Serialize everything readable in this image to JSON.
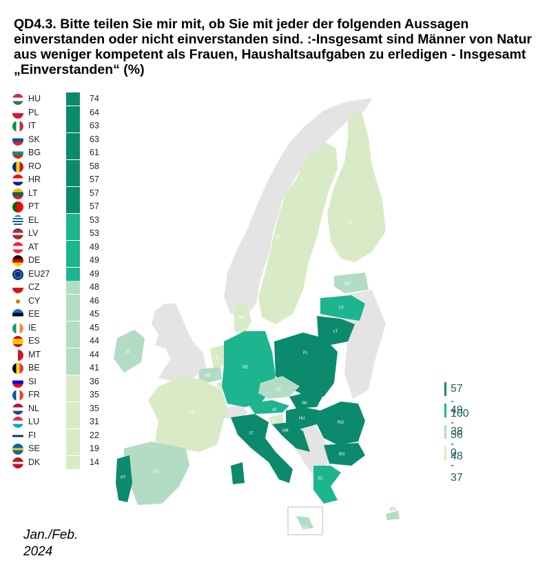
{
  "title": "QD4.3. Bitte teilen Sie mir mit, ob Sie mit jeder der folgenden Aussagen einverstanden oder nicht einverstanden sind. :-Insgesamt sind Männer von Natur aus weniger kompetent als Frauen, Haushaltsaufgaben zu erledigen - Insgesamt „Einverstanden“ (%)",
  "date": "Jan./Feb. 2024",
  "colors": {
    "c1": "#0c8a6e",
    "c2": "#1db490",
    "c3": "#b3dcc4",
    "c4": "#d9ebc6",
    "nodata": "#e4e4e4"
  },
  "countries": [
    {
      "code": "HU",
      "value": "74",
      "class": "c1"
    },
    {
      "code": "PL",
      "value": "64",
      "class": "c1"
    },
    {
      "code": "IT",
      "value": "63",
      "class": "c1"
    },
    {
      "code": "SK",
      "value": "63",
      "class": "c1"
    },
    {
      "code": "BG",
      "value": "61",
      "class": "c1"
    },
    {
      "code": "RO",
      "value": "58",
      "class": "c1"
    },
    {
      "code": "HR",
      "value": "57",
      "class": "c1"
    },
    {
      "code": "LT",
      "value": "57",
      "class": "c1"
    },
    {
      "code": "PT",
      "value": "57",
      "class": "c1"
    },
    {
      "code": "EL",
      "value": "53",
      "class": "c2"
    },
    {
      "code": "LV",
      "value": "53",
      "class": "c2"
    },
    {
      "code": "AT",
      "value": "49",
      "class": "c2"
    },
    {
      "code": "DE",
      "value": "49",
      "class": "c2"
    },
    {
      "code": "EU27",
      "value": "49",
      "class": "c2"
    },
    {
      "code": "CZ",
      "value": "48",
      "class": "c3"
    },
    {
      "code": "CY",
      "value": "46",
      "class": "c3"
    },
    {
      "code": "EE",
      "value": "45",
      "class": "c3"
    },
    {
      "code": "IE",
      "value": "45",
      "class": "c3"
    },
    {
      "code": "ES",
      "value": "44",
      "class": "c3"
    },
    {
      "code": "MT",
      "value": "44",
      "class": "c3"
    },
    {
      "code": "BE",
      "value": "41",
      "class": "c3"
    },
    {
      "code": "SI",
      "value": "36",
      "class": "c4"
    },
    {
      "code": "FR",
      "value": "35",
      "class": "c4"
    },
    {
      "code": "NL",
      "value": "35",
      "class": "c4"
    },
    {
      "code": "LU",
      "value": "31",
      "class": "c4"
    },
    {
      "code": "FI",
      "value": "22",
      "class": "c4"
    },
    {
      "code": "SE",
      "value": "19",
      "class": "c4"
    },
    {
      "code": "DK",
      "value": "14",
      "class": "c4"
    }
  ],
  "legend": [
    {
      "label": "57 - 100",
      "class": "c1"
    },
    {
      "label": "49 - 56",
      "class": "c2"
    },
    {
      "label": "38 - 48",
      "class": "c3"
    },
    {
      "label": "0 - 37",
      "class": "c4"
    }
  ]
}
